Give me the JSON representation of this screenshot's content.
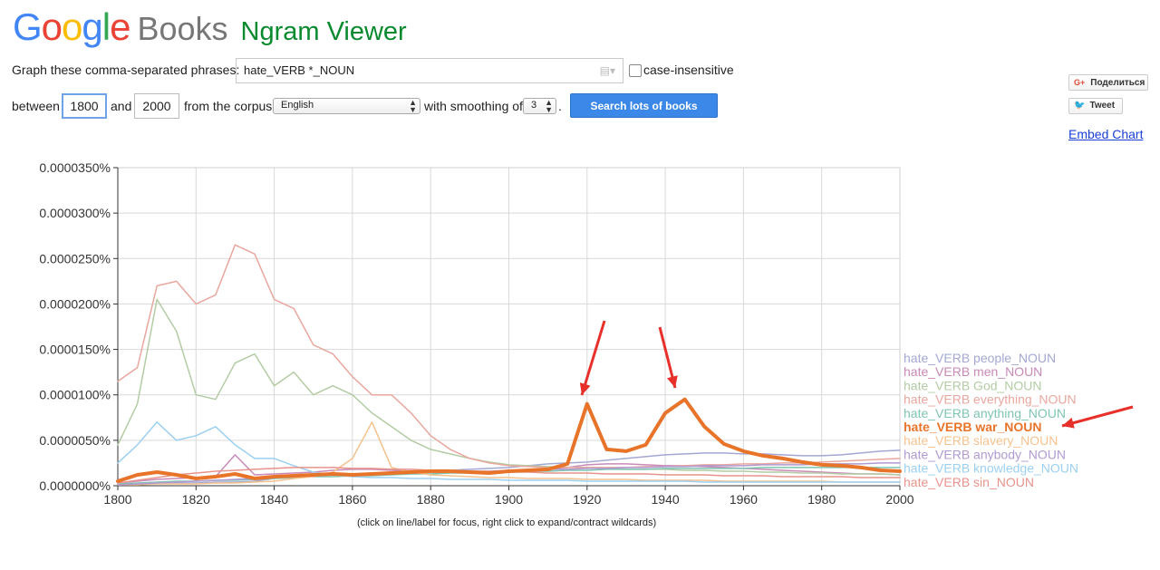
{
  "header": {
    "logo_letters": [
      "G",
      "o",
      "o",
      "g",
      "l",
      "e"
    ],
    "logo_colors": [
      "#4285f4",
      "#ea4335",
      "#fbbc05",
      "#4285f4",
      "#34a853",
      "#ea4335"
    ],
    "books": "Books",
    "viewer": "Ngram Viewer"
  },
  "form": {
    "phrases_label": "Graph these comma-separated phrases:",
    "phrase_value": "hate_VERB *_NOUN",
    "case_insensitive_label": "case-insensitive",
    "between_label": "between",
    "start_year": "1800",
    "and_label": "and",
    "end_year": "2000",
    "corpus_label": "from the corpus",
    "corpus_value": "English",
    "smoothing_label": "with smoothing of",
    "smoothing_value": "3",
    "period": ".",
    "search_button": "Search lots of books"
  },
  "social": {
    "share_label": "Поделиться",
    "share_icon": "G+",
    "tweet_label": "Tweet",
    "embed_label": "Embed Chart"
  },
  "footer_note": "(click on line/label for focus, right click to expand/contract wildcards)",
  "colors": {
    "annotation_arrow": "#e8302a"
  },
  "chart_data": {
    "type": "line",
    "x": [
      1800,
      1805,
      1810,
      1815,
      1820,
      1825,
      1830,
      1835,
      1840,
      1845,
      1850,
      1855,
      1860,
      1865,
      1870,
      1875,
      1880,
      1885,
      1890,
      1895,
      1900,
      1905,
      1910,
      1915,
      1920,
      1925,
      1930,
      1935,
      1940,
      1945,
      1950,
      1955,
      1960,
      1965,
      1970,
      1975,
      1980,
      1985,
      1990,
      1995,
      2000
    ],
    "y_ticks": [
      "0.0000000%",
      "0.0000050%",
      "0.0000100%",
      "0.0000150%",
      "0.0000200%",
      "0.0000250%",
      "0.0000300%",
      "0.0000350%"
    ],
    "x_ticks": [
      "1800",
      "1820",
      "1840",
      "1860",
      "1880",
      "1900",
      "1920",
      "1940",
      "1960",
      "1980",
      "2000"
    ],
    "xlim": [
      1800,
      2000
    ],
    "ylim": [
      0,
      3.5e-05
    ],
    "grid": true,
    "legend_position": "right",
    "focused_series": "hate_VERB war_NOUN",
    "series": [
      {
        "name": "hate_VERB people_NOUN",
        "color": "#a4a8d2",
        "width": 1.5,
        "values": [
          0.1,
          0.2,
          0.3,
          0.3,
          0.3,
          0.4,
          0.4,
          0.5,
          0.8,
          1.0,
          1.2,
          1.2,
          1.3,
          1.4,
          1.5,
          1.6,
          1.6,
          1.7,
          1.8,
          1.9,
          2.0,
          2.2,
          2.4,
          2.5,
          2.6,
          2.8,
          3.0,
          3.2,
          3.4,
          3.5,
          3.6,
          3.6,
          3.5,
          3.5,
          3.4,
          3.3,
          3.3,
          3.4,
          3.6,
          3.8,
          3.9
        ]
      },
      {
        "name": "hate_VERB men_NOUN",
        "color": "#c98ab8",
        "width": 1.5,
        "values": [
          0.3,
          0.5,
          0.7,
          0.8,
          0.9,
          1.0,
          3.4,
          1.2,
          1.3,
          1.4,
          1.5,
          1.7,
          1.8,
          1.8,
          1.7,
          1.6,
          1.5,
          1.5,
          1.4,
          1.4,
          1.5,
          1.6,
          1.8,
          2.0,
          2.3,
          2.4,
          2.4,
          2.3,
          2.2,
          2.2,
          2.1,
          2.0,
          1.9,
          1.8,
          1.7,
          1.6,
          1.5,
          1.4,
          1.3,
          1.3,
          1.2
        ]
      },
      {
        "name": "hate_VERB God_NOUN",
        "color": "#b3cca4",
        "width": 1.5,
        "values": [
          4.5,
          9.0,
          20.5,
          17.0,
          10.0,
          9.5,
          13.5,
          14.5,
          11.0,
          12.5,
          10.0,
          11.0,
          10.0,
          8.0,
          6.5,
          5.0,
          4.0,
          3.5,
          3.0,
          2.6,
          2.3,
          2.2,
          2.1,
          2.0,
          2.0,
          1.9,
          1.8,
          1.8,
          1.8,
          1.7,
          1.7,
          1.6,
          1.6,
          1.5,
          1.5,
          1.4,
          1.4,
          1.3,
          1.3,
          1.3,
          1.2
        ]
      },
      {
        "name": "hate_VERB everything_NOUN",
        "color": "#e9a79e",
        "width": 1.5,
        "values": [
          11.5,
          13.0,
          22.0,
          22.5,
          20.0,
          21.0,
          26.5,
          25.5,
          20.5,
          19.5,
          15.5,
          14.5,
          12.0,
          10.0,
          10.0,
          8.0,
          5.5,
          4.0,
          3.0,
          2.5,
          2.2,
          2.1,
          2.0,
          2.0,
          2.0,
          2.0,
          2.0,
          2.1,
          2.1,
          2.2,
          2.3,
          2.3,
          2.4,
          2.4,
          2.5,
          2.5,
          2.6,
          2.7,
          2.8,
          2.9,
          3.0
        ]
      },
      {
        "name": "hate_VERB anything_NOUN",
        "color": "#7fc4b3",
        "width": 1.5,
        "values": [
          0.2,
          0.3,
          0.4,
          0.5,
          0.5,
          0.6,
          0.6,
          0.7,
          0.8,
          0.9,
          1.0,
          1.0,
          1.1,
          1.1,
          1.2,
          1.3,
          1.3,
          1.4,
          1.4,
          1.5,
          1.5,
          1.6,
          1.6,
          1.7,
          1.7,
          1.8,
          1.8,
          1.8,
          1.9,
          1.9,
          1.9,
          1.9,
          1.9,
          2.0,
          2.0,
          2.0,
          2.0,
          2.0,
          2.0,
          2.0,
          2.0
        ]
      },
      {
        "name": "hate_VERB war_NOUN",
        "color": "#e8742a",
        "width": 4,
        "values": [
          0.5,
          1.2,
          1.5,
          1.2,
          0.8,
          1.0,
          1.3,
          0.8,
          1.0,
          1.1,
          1.2,
          1.3,
          1.2,
          1.3,
          1.4,
          1.5,
          1.6,
          1.6,
          1.5,
          1.4,
          1.6,
          1.7,
          1.8,
          2.4,
          9.0,
          4.0,
          3.8,
          4.5,
          8.0,
          9.5,
          6.5,
          4.6,
          3.8,
          3.3,
          3.0,
          2.6,
          2.3,
          2.2,
          2.0,
          1.7,
          1.6
        ]
      },
      {
        "name": "hate_VERB slavery_NOUN",
        "color": "#f5c28e",
        "width": 1.5,
        "values": [
          0.1,
          0.1,
          0.2,
          0.2,
          0.2,
          0.3,
          0.3,
          0.4,
          0.5,
          0.8,
          1.0,
          1.5,
          3.0,
          7.0,
          2.0,
          1.5,
          1.2,
          1.1,
          1.0,
          0.9,
          0.9,
          0.8,
          0.8,
          0.8,
          0.7,
          0.7,
          0.7,
          0.6,
          0.6,
          0.6,
          0.6,
          0.5,
          0.5,
          0.5,
          0.5,
          0.5,
          0.5,
          0.4,
          0.4,
          0.4,
          0.4
        ]
      },
      {
        "name": "hate_VERB anybody_NOUN",
        "color": "#b09ad1",
        "width": 1.5,
        "values": [
          0.1,
          0.2,
          0.3,
          0.4,
          0.5,
          0.6,
          0.7,
          0.8,
          0.9,
          1.0,
          1.1,
          1.2,
          1.3,
          1.3,
          1.4,
          1.4,
          1.5,
          1.5,
          1.6,
          1.6,
          1.7,
          1.7,
          1.8,
          1.8,
          1.9,
          1.9,
          2.0,
          2.0,
          2.1,
          2.1,
          2.2,
          2.2,
          2.2,
          2.3,
          2.3,
          2.3,
          2.4,
          2.4,
          2.4,
          2.5,
          2.5
        ]
      },
      {
        "name": "hate_VERB knowledge_NOUN",
        "color": "#9cd0f0",
        "width": 1.5,
        "values": [
          2.5,
          4.5,
          7.0,
          5.0,
          5.5,
          6.5,
          4.5,
          3.0,
          3.0,
          2.2,
          1.5,
          1.2,
          1.0,
          0.9,
          0.9,
          0.8,
          0.8,
          0.7,
          0.7,
          0.7,
          0.6,
          0.6,
          0.6,
          0.6,
          0.5,
          0.5,
          0.5,
          0.5,
          0.5,
          0.5,
          0.4,
          0.4,
          0.4,
          0.4,
          0.4,
          0.4,
          0.4,
          0.4,
          0.4,
          0.4,
          0.4
        ]
      },
      {
        "name": "hate_VERB sin_NOUN",
        "color": "#e8938c",
        "width": 1.5,
        "values": [
          0.3,
          0.6,
          0.9,
          1.2,
          1.4,
          1.6,
          1.7,
          1.8,
          1.9,
          2.0,
          2.0,
          2.0,
          1.9,
          1.9,
          1.8,
          1.8,
          1.7,
          1.7,
          1.6,
          1.6,
          1.5,
          1.5,
          1.4,
          1.4,
          1.4,
          1.3,
          1.3,
          1.3,
          1.2,
          1.2,
          1.2,
          1.1,
          1.1,
          1.1,
          1.0,
          1.0,
          1.0,
          1.0,
          0.9,
          0.9,
          0.9
        ]
      }
    ],
    "value_scale_note_units": "percent x 1e-6"
  }
}
